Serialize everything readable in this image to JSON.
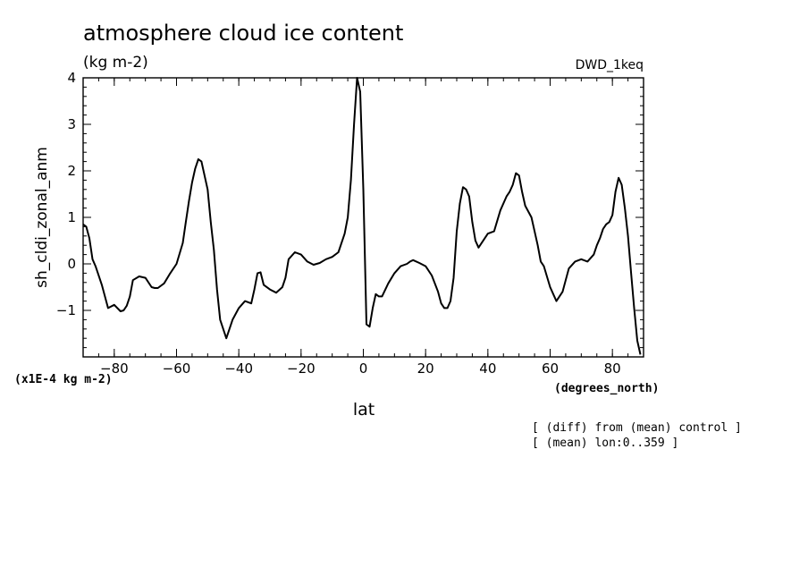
{
  "chart_data": {
    "type": "line",
    "title": "atmosphere cloud ice content",
    "units": "(kg m-2)",
    "run_label": "DWD_1keq",
    "ylabel": "sh_cldi_zonal_anm",
    "xlabel": "lat",
    "x_units": "(degrees_north)",
    "y_scale_note": "(x1E-4 kg m-2)",
    "annotations": [
      "[ (diff) from (mean) control ]",
      "[ (mean) lon:0..359 ]"
    ],
    "xlim": [
      -90,
      90
    ],
    "ylim": [
      -2,
      4
    ],
    "x_ticks": [
      -80,
      -60,
      -40,
      -20,
      0,
      20,
      40,
      60,
      80
    ],
    "x_tick_labels": [
      "-80",
      "-60",
      "-40",
      "-20",
      "0",
      "20",
      "40",
      "60",
      "80"
    ],
    "y_ticks": [
      -1,
      0,
      1,
      2,
      3,
      4
    ],
    "y_tick_labels": [
      "-1",
      "0",
      "1",
      "2",
      "3",
      "4"
    ],
    "grid": false,
    "series": [
      {
        "name": "sh_cldi_zonal_anm",
        "x": [
          -90,
          -89,
          -88,
          -87,
          -86,
          -84,
          -82,
          -80,
          -78,
          -77,
          -76,
          -75,
          -74,
          -72,
          -70,
          -68,
          -67,
          -66,
          -64,
          -62,
          -60,
          -58,
          -57,
          -56,
          -55,
          -54,
          -53,
          -52,
          -50,
          -49,
          -48,
          -47,
          -46,
          -44,
          -42,
          -40,
          -38,
          -36,
          -35,
          -34,
          -33,
          -32,
          -30,
          -28,
          -26,
          -25,
          -24,
          -22,
          -20,
          -18,
          -16,
          -14,
          -12,
          -10,
          -8,
          -6,
          -5,
          -4,
          -3,
          -2,
          -1,
          0,
          1,
          2,
          3,
          4,
          5,
          6,
          8,
          10,
          12,
          14,
          15,
          16,
          18,
          20,
          22,
          24,
          25,
          26,
          27,
          28,
          29,
          30,
          31,
          32,
          33,
          34,
          35,
          36,
          37,
          38,
          40,
          42,
          44,
          46,
          47,
          48,
          49,
          50,
          51,
          52,
          54,
          56,
          57,
          58,
          60,
          61,
          62,
          64,
          66,
          68,
          70,
          72,
          74,
          75,
          76,
          77,
          78,
          79,
          80,
          81,
          82,
          83,
          84,
          85,
          86,
          87,
          88,
          89
        ],
        "values": [
          0.85,
          0.8,
          0.55,
          0.1,
          -0.05,
          -0.45,
          -0.95,
          -0.88,
          -1.02,
          -1.0,
          -0.9,
          -0.7,
          -0.35,
          -0.27,
          -0.3,
          -0.5,
          -0.52,
          -0.52,
          -0.42,
          -0.2,
          0.0,
          0.45,
          0.9,
          1.35,
          1.75,
          2.05,
          2.25,
          2.2,
          1.6,
          0.9,
          0.3,
          -0.55,
          -1.2,
          -1.6,
          -1.2,
          -0.95,
          -0.8,
          -0.85,
          -0.55,
          -0.2,
          -0.18,
          -0.45,
          -0.55,
          -0.62,
          -0.5,
          -0.3,
          0.1,
          0.25,
          0.2,
          0.05,
          -0.02,
          0.02,
          0.1,
          0.15,
          0.25,
          0.65,
          1.0,
          1.8,
          3.0,
          4.0,
          3.7,
          1.6,
          -1.3,
          -1.35,
          -0.95,
          -0.65,
          -0.7,
          -0.7,
          -0.42,
          -0.2,
          -0.05,
          0.0,
          0.05,
          0.08,
          0.02,
          -0.05,
          -0.25,
          -0.6,
          -0.85,
          -0.95,
          -0.95,
          -0.8,
          -0.3,
          0.7,
          1.3,
          1.65,
          1.6,
          1.45,
          0.9,
          0.5,
          0.35,
          0.45,
          0.65,
          0.7,
          1.15,
          1.45,
          1.55,
          1.7,
          1.95,
          1.9,
          1.55,
          1.25,
          1.0,
          0.4,
          0.05,
          -0.05,
          -0.5,
          -0.65,
          -0.8,
          -0.6,
          -0.1,
          0.05,
          0.1,
          0.05,
          0.2,
          0.4,
          0.55,
          0.75,
          0.85,
          0.9,
          1.05,
          1.55,
          1.85,
          1.7,
          1.2,
          0.6,
          -0.2,
          -0.95,
          -1.65,
          -1.95
        ]
      }
    ]
  }
}
